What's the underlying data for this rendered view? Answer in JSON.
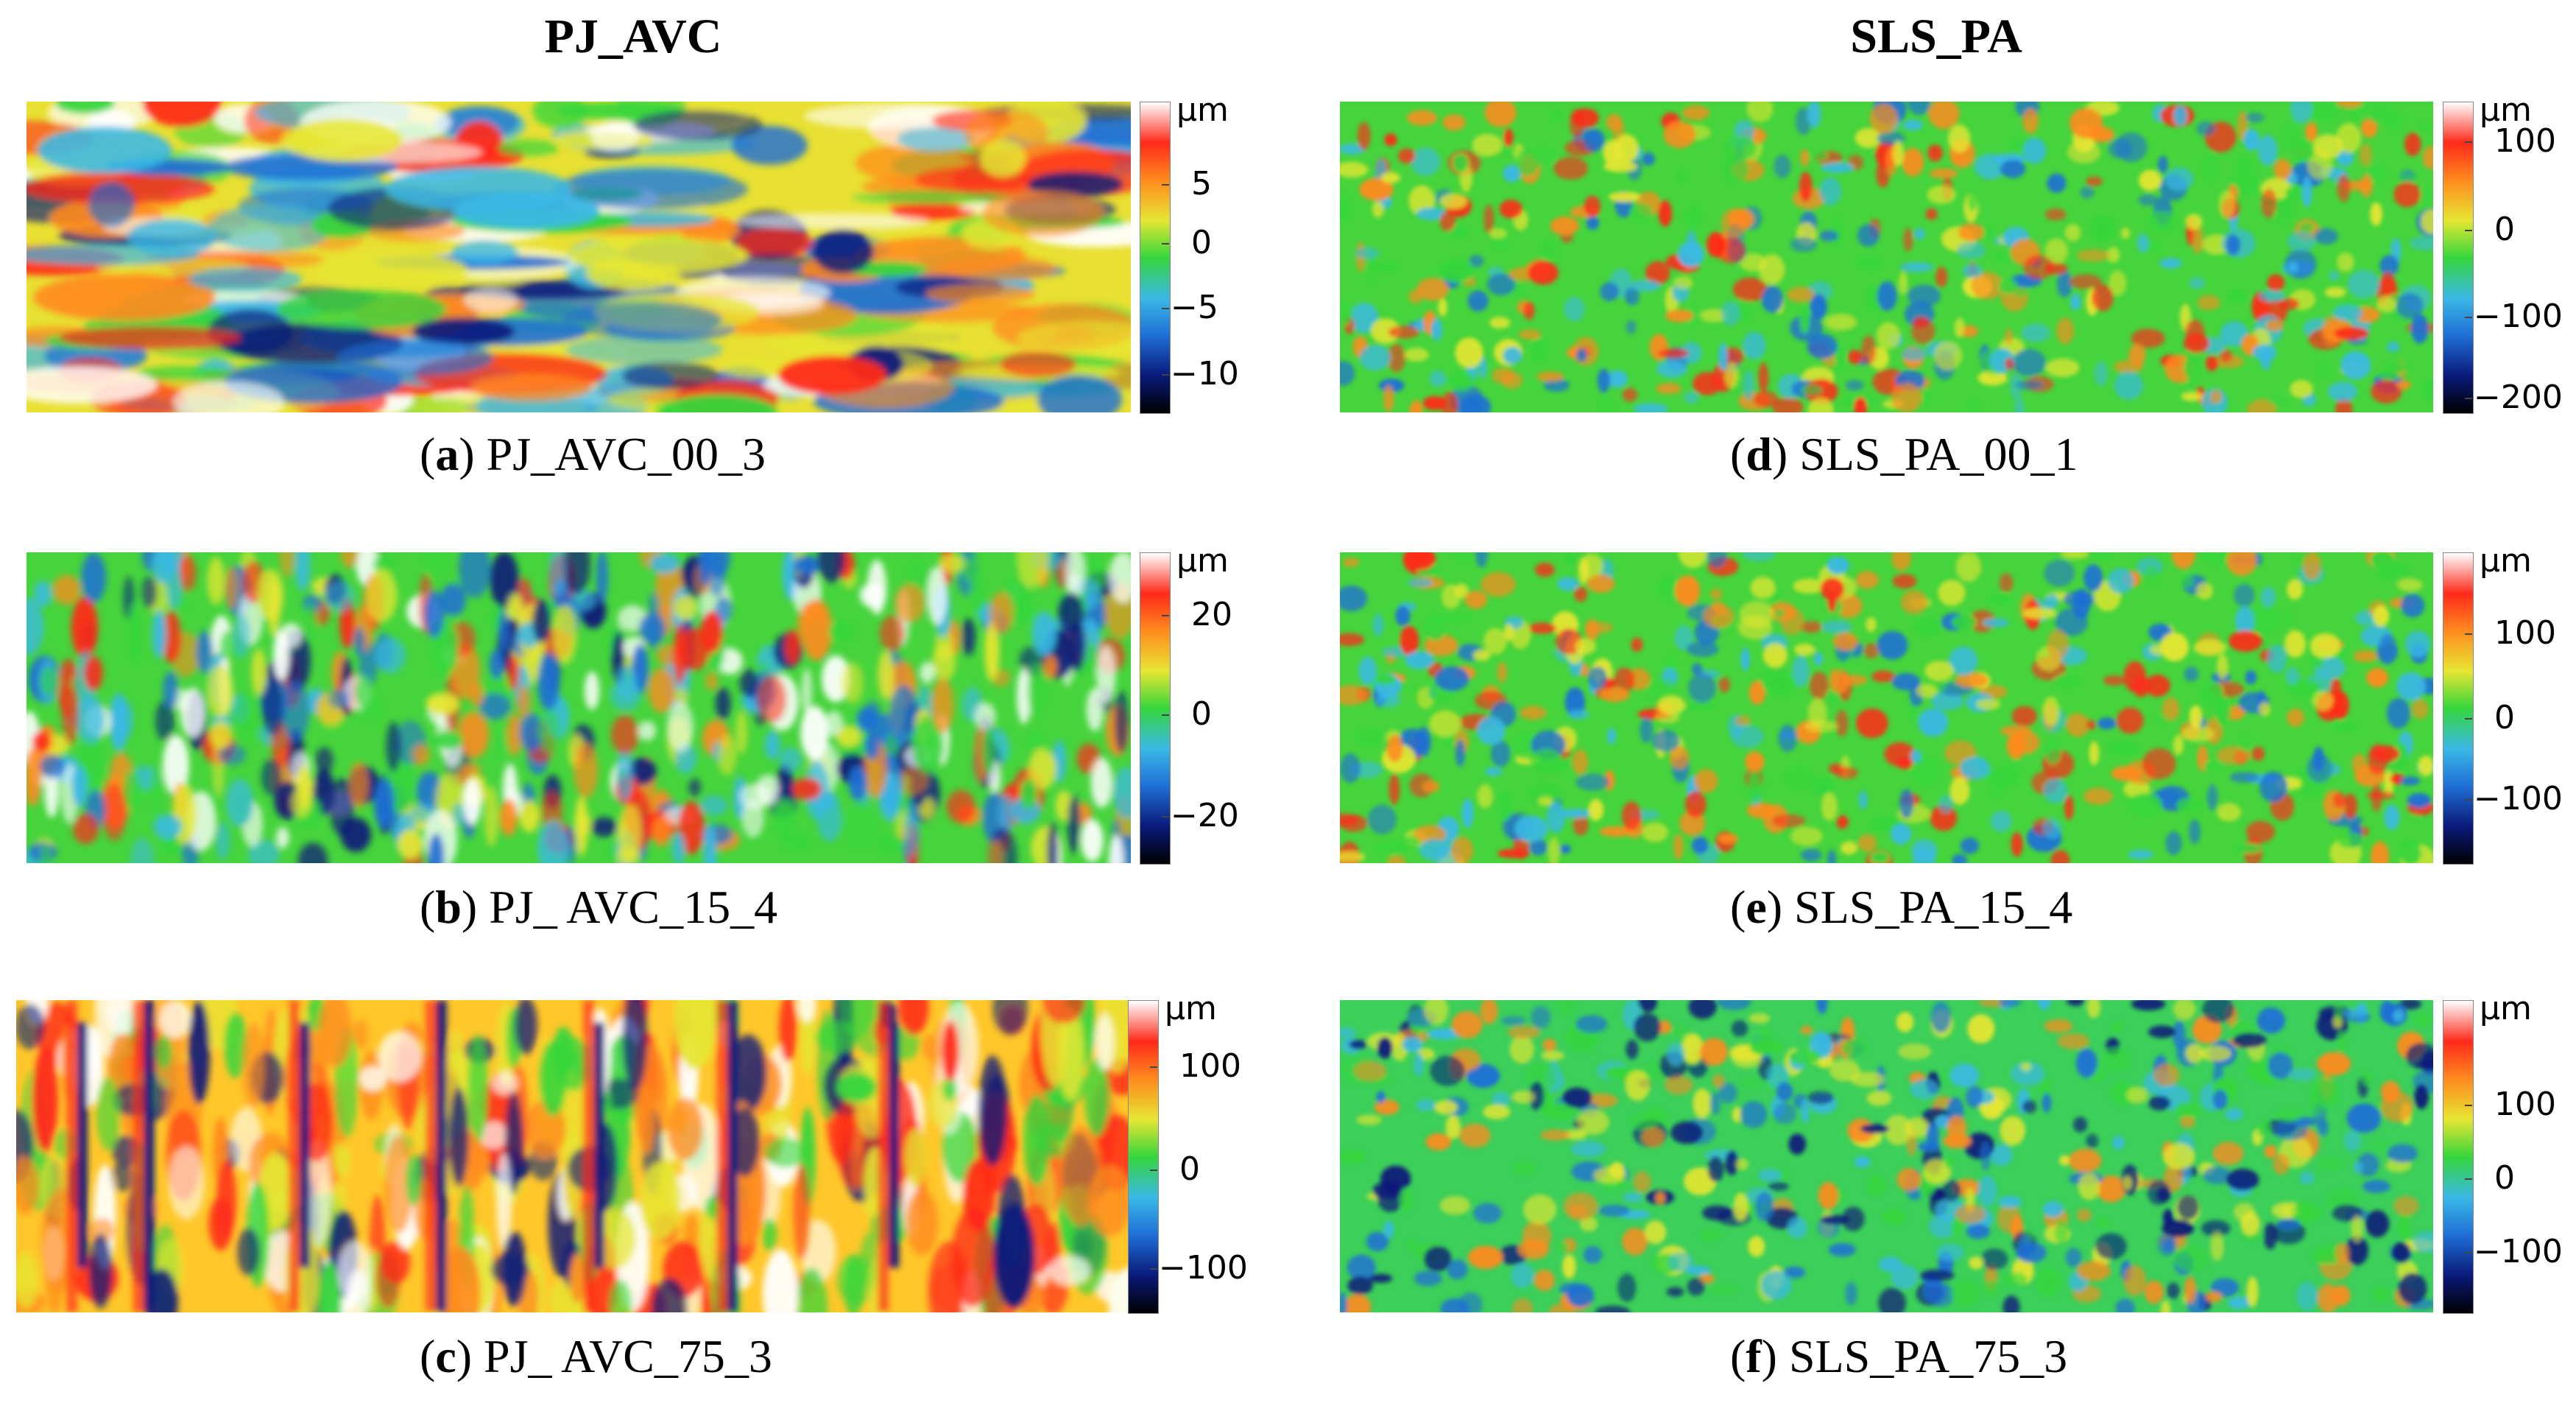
{
  "columns": {
    "left_title": "PJ_AVC",
    "right_title": "SLS_PA"
  },
  "unit": "μm",
  "panels": [
    {
      "id": "a",
      "name": "PJ_AVC_00_3",
      "ticks": [
        "5",
        "0",
        "−5",
        "−10"
      ],
      "colorscale": [
        "#000000",
        "#0a1a7a",
        "#1f6fd6",
        "#3ab8e6",
        "#35d63c",
        "#e6e632",
        "#ff8a1e",
        "#ff2a1a",
        "#ffffff"
      ]
    },
    {
      "id": "b",
      "name": "PJ_ AVC_15_4",
      "ticks": [
        "20",
        "0",
        "−20"
      ],
      "colorscale": [
        "#000000",
        "#0a1a7a",
        "#1f6fd6",
        "#3ab8e6",
        "#35d63c",
        "#e6e632",
        "#ff8a1e",
        "#ff2a1a",
        "#ffffff"
      ]
    },
    {
      "id": "c",
      "name": "PJ_ AVC_75_3",
      "ticks": [
        "100",
        "0",
        "−100"
      ],
      "colorscale": [
        "#000000",
        "#0a1a7a",
        "#1f6fd6",
        "#3ab8e6",
        "#35d63c",
        "#e6e632",
        "#ff8a1e",
        "#ff2a1a",
        "#ffffff"
      ]
    },
    {
      "id": "d",
      "name": "SLS_PA_00_1",
      "ticks": [
        "100",
        "0",
        "−100",
        "−200"
      ],
      "colorscale": [
        "#000000",
        "#0a1a7a",
        "#1f6fd6",
        "#3ab8e6",
        "#35d63c",
        "#e6e632",
        "#ff8a1e",
        "#ff2a1a",
        "#ffffff"
      ]
    },
    {
      "id": "e",
      "name": "SLS_PA_15_4",
      "ticks": [
        "100",
        "0",
        "−100"
      ],
      "colorscale": [
        "#000000",
        "#0a1a7a",
        "#1f6fd6",
        "#3ab8e6",
        "#35d63c",
        "#e6e632",
        "#ff8a1e",
        "#ff2a1a",
        "#ffffff"
      ]
    },
    {
      "id": "f",
      "name": "SLS_PA_75_3",
      "ticks": [
        "100",
        "0",
        "−100"
      ],
      "colorscale": [
        "#000000",
        "#0a1a7a",
        "#1f6fd6",
        "#3ab8e6",
        "#35d63c",
        "#e6e632",
        "#ff8a1e",
        "#ff2a1a",
        "#ffffff"
      ]
    }
  ]
}
